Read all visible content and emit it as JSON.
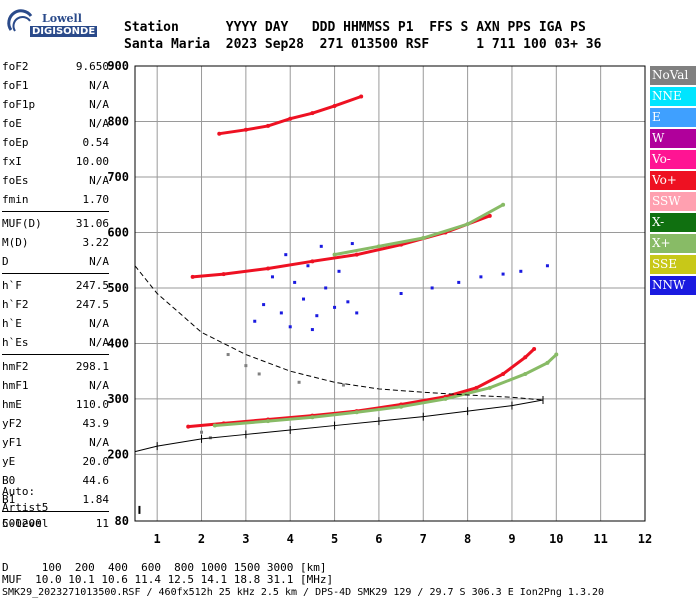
{
  "logo": {
    "line1": "Lowell",
    "line2": "DIGISONDE"
  },
  "header": {
    "row1": "Station      YYYY DAY   DDD HHMMSS P1  FFS S AXN PPS IGA PS",
    "row2": "Santa Maria  2023 Sep28  271 013500 RSF      1 711 100 03+ 36"
  },
  "params": [
    {
      "k": "foF2",
      "v": "9.650"
    },
    {
      "k": "foF1",
      "v": "N/A"
    },
    {
      "k": "foF1p",
      "v": "N/A"
    },
    {
      "k": "foE",
      "v": "N/A"
    },
    {
      "k": "foEp",
      "v": "0.54"
    },
    {
      "k": "fxI",
      "v": "10.00"
    },
    {
      "k": "foEs",
      "v": "N/A"
    },
    {
      "k": "fmin",
      "v": "1.70"
    },
    {
      "k": "MUF(D)",
      "v": "31.06"
    },
    {
      "k": "M(D)",
      "v": "3.22"
    },
    {
      "k": "D",
      "v": "N/A"
    },
    {
      "k": "h`F",
      "v": "247.5"
    },
    {
      "k": "h`F2",
      "v": "247.5"
    },
    {
      "k": "h`E",
      "v": "N/A"
    },
    {
      "k": "h`Es",
      "v": "N/A"
    },
    {
      "k": "hmF2",
      "v": "298.1"
    },
    {
      "k": "hmF1",
      "v": "N/A"
    },
    {
      "k": "hmE",
      "v": "110.0"
    },
    {
      "k": "yF2",
      "v": "43.9"
    },
    {
      "k": "yF1",
      "v": "N/A"
    },
    {
      "k": "yE",
      "v": "20.0"
    },
    {
      "k": "B0",
      "v": "44.6"
    },
    {
      "k": "B1",
      "v": "1.84"
    },
    {
      "k": "C-level",
      "v": "11"
    }
  ],
  "auto": [
    "Auto:",
    "Artist5",
    "500200"
  ],
  "legend": [
    {
      "label": "NoVal",
      "color": "#808080"
    },
    {
      "label": "NNE",
      "color": "#00e5ff"
    },
    {
      "label": "E",
      "color": "#3fa0ff"
    },
    {
      "label": "W",
      "color": "#b0009b"
    },
    {
      "label": "Vo-",
      "color": "#ff1493"
    },
    {
      "label": "Vo+",
      "color": "#ee1122"
    },
    {
      "label": "SSW",
      "color": "#ffa0b0"
    },
    {
      "label": "X-",
      "color": "#107010"
    },
    {
      "label": "X+",
      "color": "#88bb66"
    },
    {
      "label": "SSE",
      "color": "#c8c818"
    },
    {
      "label": "NNW",
      "color": "#1a1ae0"
    }
  ],
  "footer": {
    "line1": "D     100  200  400  600  800 1000 1500 3000 [km]",
    "line2": "MUF  10.0 10.1 10.6 11.4 12.5 14.1 18.8 31.1 [MHz]",
    "line3": "SMK29_2023271013500.RSF / 460fx512h 25 kHz 2.5 km / DPS-4D SMK29 129 / 29.7 S 306.3 E Ion2Png 1.3.20"
  },
  "chart_data": {
    "type": "scatter",
    "xlim": [
      0.5,
      12
    ],
    "ylim": [
      80,
      900
    ],
    "x_ticks": [
      1,
      2,
      3,
      4,
      5,
      6,
      7,
      8,
      9,
      10,
      11,
      12
    ],
    "y_ticks": [
      80,
      200,
      300,
      400,
      500,
      600,
      700,
      800,
      900
    ],
    "grid": true,
    "series": [
      {
        "name": "Vo+",
        "color": "#ee1122",
        "values": [
          [
            1.7,
            250
          ],
          [
            2.5,
            256
          ],
          [
            3.5,
            263
          ],
          [
            4.5,
            270
          ],
          [
            5.5,
            278
          ],
          [
            6.5,
            290
          ],
          [
            7.5,
            304
          ],
          [
            8.2,
            320
          ],
          [
            8.8,
            345
          ],
          [
            9.3,
            375
          ],
          [
            9.5,
            390
          ]
        ]
      },
      {
        "name": "X+",
        "color": "#88bb66",
        "values": [
          [
            2.3,
            252
          ],
          [
            3.5,
            260
          ],
          [
            4.5,
            267
          ],
          [
            5.5,
            276
          ],
          [
            6.5,
            286
          ],
          [
            7.5,
            300
          ],
          [
            8.5,
            320
          ],
          [
            9.3,
            345
          ],
          [
            9.8,
            365
          ],
          [
            10.0,
            380
          ]
        ]
      },
      {
        "name": "Vo+",
        "color": "#ee1122",
        "values": [
          [
            1.8,
            520
          ],
          [
            2.5,
            525
          ],
          [
            3.5,
            535
          ],
          [
            4.5,
            548
          ],
          [
            5.5,
            560
          ],
          [
            6.5,
            578
          ],
          [
            7.5,
            600
          ],
          [
            8.5,
            630
          ]
        ]
      },
      {
        "name": "X+",
        "color": "#88bb66",
        "values": [
          [
            5.0,
            560
          ],
          [
            6.0,
            575
          ],
          [
            7.0,
            590
          ],
          [
            8.0,
            615
          ],
          [
            8.8,
            650
          ]
        ]
      },
      {
        "name": "Vo+",
        "color": "#ee1122",
        "values": [
          [
            2.4,
            778
          ],
          [
            3.0,
            785
          ],
          [
            3.5,
            792
          ],
          [
            4.0,
            805
          ],
          [
            4.5,
            815
          ],
          [
            5.0,
            828
          ],
          [
            5.6,
            845
          ]
        ]
      },
      {
        "name": "NNW",
        "color": "#1a1ae0",
        "values": [
          [
            3.2,
            440
          ],
          [
            3.4,
            470
          ],
          [
            3.6,
            520
          ],
          [
            3.8,
            455
          ],
          [
            4.0,
            430
          ],
          [
            4.1,
            510
          ],
          [
            4.3,
            480
          ],
          [
            4.4,
            540
          ],
          [
            4.6,
            450
          ],
          [
            4.8,
            500
          ],
          [
            5.0,
            465
          ],
          [
            5.1,
            530
          ],
          [
            5.3,
            475
          ],
          [
            5.5,
            455
          ],
          [
            3.9,
            560
          ],
          [
            4.7,
            575
          ],
          [
            5.4,
            580
          ],
          [
            4.5,
            425
          ],
          [
            6.5,
            490
          ],
          [
            7.2,
            500
          ],
          [
            7.8,
            510
          ],
          [
            8.3,
            520
          ],
          [
            8.8,
            525
          ],
          [
            9.2,
            530
          ],
          [
            9.8,
            540
          ]
        ]
      },
      {
        "name": "NoVal",
        "color": "#808080",
        "values": [
          [
            2.0,
            240
          ],
          [
            2.2,
            230
          ],
          [
            2.6,
            380
          ],
          [
            3.0,
            360
          ],
          [
            3.3,
            345
          ],
          [
            4.2,
            330
          ],
          [
            5.2,
            325
          ]
        ]
      }
    ],
    "profile": [
      [
        0.5,
        540
      ],
      [
        1.0,
        490
      ],
      [
        2.0,
        420
      ],
      [
        3.0,
        380
      ],
      [
        4.0,
        350
      ],
      [
        5.0,
        330
      ],
      [
        6.0,
        318
      ],
      [
        7.0,
        312
      ],
      [
        8.0,
        307
      ],
      [
        9.0,
        303
      ],
      [
        9.7,
        298
      ]
    ],
    "trace_fit": [
      [
        0.5,
        205
      ],
      [
        1.0,
        215
      ],
      [
        2.0,
        228
      ],
      [
        3.0,
        236
      ],
      [
        4.0,
        244
      ],
      [
        5.0,
        252
      ],
      [
        6.0,
        260
      ],
      [
        7.0,
        268
      ],
      [
        8.0,
        278
      ],
      [
        9.0,
        288
      ],
      [
        9.7,
        298
      ]
    ],
    "marker": [
      0.6,
      100
    ]
  }
}
